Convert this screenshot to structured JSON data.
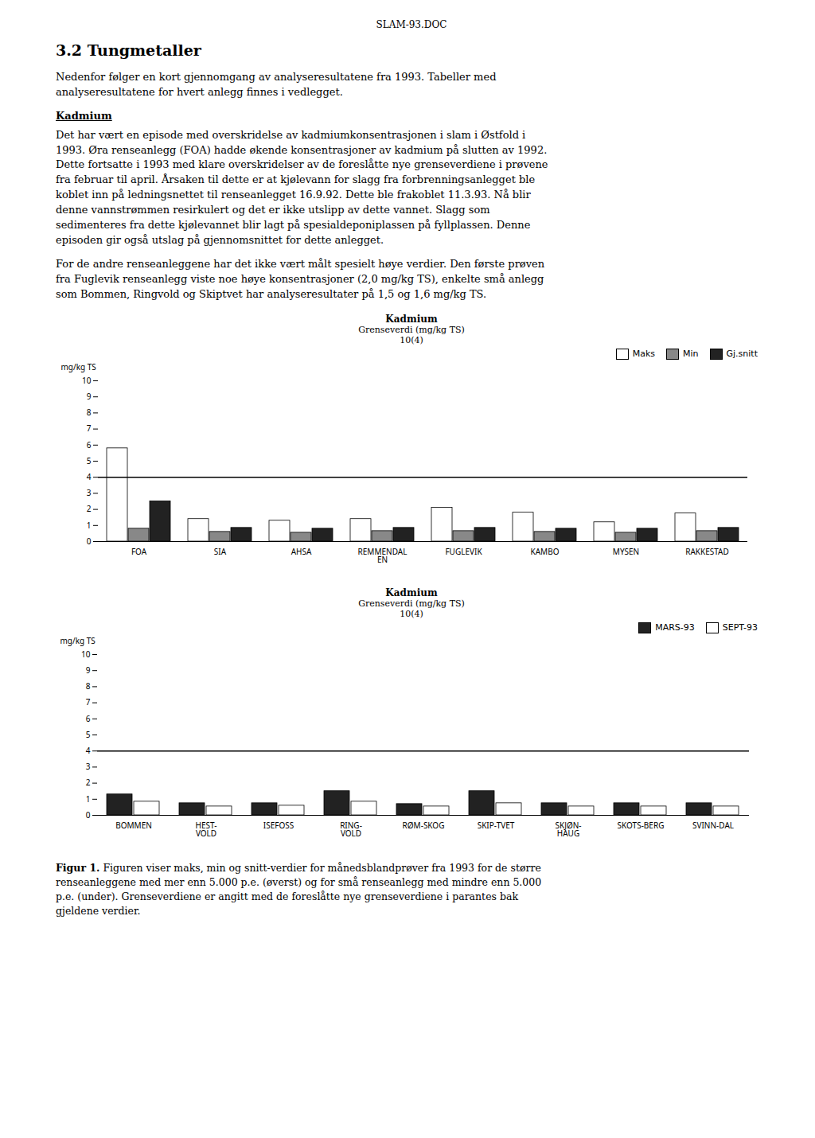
{
  "page_title": "SLAM-93.DOC",
  "section_title": "3.2 Tungmetaller",
  "paragraph1": "Nedenfor følger en kort gjennomgang av analyseresultatene fra 1993. Tabeller med\nanalyseresultatene for hvert anlegg finnes i vedlegget.",
  "subsection_title": "Kadmium",
  "paragraph2": "Det har vært en episode med overskridelse av kadmiumkonsentrasjonen i slam i Østfold i\n1993. Øra renseanlegg (FOA) hadde økende konsentrasjoner av kadmium på slutten av 1992.\nDette fortsatte i 1993 med klare overskridelser av de foreslåtte nye grenseverdiene i prøvene\nfra februar til april. Årsaken til dette er at kjølevann for slagg fra forbrenningsanlegget ble\nkoblet inn på ledningsnettet til renseanlegget 16.9.92. Dette ble frakoblet 11.3.93. Nå blir\ndenne vannstrømmen resirkulert og det er ikke utslipp av dette vannet. Slagg som\nsedimenteres fra dette kjølevannet blir lagt på spesialdeponiplassen på fyllplassen. Denne\nepisoden gir også utslag på gjennomsnittet for dette anlegget.",
  "paragraph3": "For de andre renseanleggene har det ikke vært målt spesielt høye verdier. Den første prøven\nfra Fuglevik renseanlegg viste noe høye konsentrasjoner (2,0 mg/kg TS), enkelte små anlegg\nsom Bommen, Ringvold og Skiptvet har analyseresultater på 1,5 og 1,6 mg/kg TS.",
  "caption_bold": "Figur 1.",
  "caption_rest": " Figuren viser maks, min og snitt-verdier for månedsblandprøver fra 1993 for de større\nrenseanleggene med mer enn 5.000 p.e. (øverst) og for små renseanlegg med mindre enn 5.000\np.e. (under). Grenseverdiene er angitt med de foreslåtte nye grenseverdiene i parantes bak\ngjeldene verdier.",
  "chart_data": [
    {
      "type": "bar",
      "title": "Kadmium",
      "subtitle": [
        "Grenseverdi (mg/kg TS)",
        "10(4)"
      ],
      "ylabel": "mg/kg TS",
      "categories": [
        "FOA",
        "SIA",
        "AHSA",
        "REMMENDAL\nEN",
        "FUGLEVIK",
        "KAMBO",
        "MYSEN",
        "RAKKESTAD"
      ],
      "series": [
        {
          "name": "Maks",
          "color": "#ffffff",
          "values": [
            5.8,
            1.4,
            1.3,
            1.4,
            2.1,
            1.8,
            1.2,
            1.75
          ]
        },
        {
          "name": "Min",
          "color": "#888888",
          "values": [
            0.8,
            0.6,
            0.55,
            0.65,
            0.65,
            0.6,
            0.55,
            0.65
          ]
        },
        {
          "name": "Gj.snitt",
          "color": "#222222",
          "values": [
            2.5,
            0.85,
            0.8,
            0.85,
            0.85,
            0.8,
            0.8,
            0.85
          ]
        }
      ],
      "threshold": 4,
      "ylim": [
        0,
        10
      ],
      "yticks": [
        0,
        1,
        2,
        3,
        4,
        5,
        6,
        7,
        8,
        9,
        10
      ],
      "legend": "upper right"
    },
    {
      "type": "bar",
      "title": "Kadmium",
      "subtitle": [
        "Grenseverdi (mg/kg TS)",
        "10(4)"
      ],
      "ylabel": "mg/kg TS",
      "categories": [
        "BOMMEN",
        "HEST-\nVOLD",
        "ISEFOSS",
        "RING-\nVOLD",
        "RØM-SKOG",
        "SKIP-TVET",
        "SKJØN-\nHAUG",
        "SKOTS-BERG",
        "SVINN-DAL"
      ],
      "series": [
        {
          "name": "MARS-93",
          "color": "#222222",
          "values": [
            1.3,
            0.75,
            0.75,
            1.5,
            0.7,
            1.5,
            0.75,
            0.75,
            0.75
          ]
        },
        {
          "name": "SEPT-93",
          "color": "#ffffff",
          "values": [
            0.85,
            0.55,
            0.6,
            0.85,
            0.55,
            0.75,
            0.55,
            0.55,
            0.55
          ]
        }
      ],
      "threshold": 4,
      "ylim": [
        0,
        10
      ],
      "yticks": [
        0,
        1,
        2,
        3,
        4,
        5,
        6,
        7,
        8,
        9,
        10
      ],
      "legend": "upper right"
    }
  ]
}
